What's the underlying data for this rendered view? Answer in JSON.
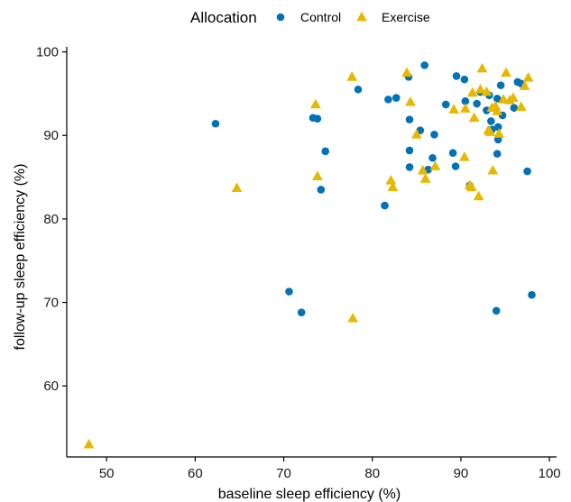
{
  "chart_data": {
    "type": "scatter",
    "xlabel": "baseline sleep efficiency (%)",
    "ylabel": "follow-up sleep efficiency (%)",
    "xlim": [
      45.5,
      100.8
    ],
    "ylim": [
      51.5,
      100.6
    ],
    "xticks": [
      50,
      60,
      70,
      80,
      90,
      100
    ],
    "yticks": [
      60,
      70,
      80,
      90,
      100
    ],
    "grid": false,
    "legend": {
      "title": "Allocation",
      "placement": "top"
    },
    "series": [
      {
        "name": "Control",
        "marker": "circle",
        "color": "#0072B5",
        "points": [
          [
            62.3,
            91.4
          ],
          [
            70.6,
            71.3
          ],
          [
            72.0,
            68.8
          ],
          [
            73.3,
            92.1
          ],
          [
            73.8,
            92.0
          ],
          [
            74.2,
            83.5
          ],
          [
            74.7,
            88.1
          ],
          [
            78.4,
            95.5
          ],
          [
            81.4,
            81.6
          ],
          [
            81.8,
            94.3
          ],
          [
            82.7,
            94.5
          ],
          [
            84.1,
            97.0
          ],
          [
            84.2,
            91.9
          ],
          [
            84.2,
            88.2
          ],
          [
            84.2,
            86.2
          ],
          [
            85.4,
            90.6
          ],
          [
            85.9,
            98.4
          ],
          [
            86.3,
            85.9
          ],
          [
            86.8,
            87.3
          ],
          [
            87.0,
            90.1
          ],
          [
            88.3,
            93.7
          ],
          [
            89.1,
            87.9
          ],
          [
            89.4,
            86.3
          ],
          [
            89.5,
            97.1
          ],
          [
            90.4,
            96.7
          ],
          [
            90.5,
            94.1
          ],
          [
            91.0,
            84.0
          ],
          [
            91.8,
            93.8
          ],
          [
            92.2,
            95.2
          ],
          [
            92.9,
            93.0
          ],
          [
            93.2,
            94.8
          ],
          [
            93.4,
            91.7
          ],
          [
            93.5,
            90.7
          ],
          [
            94.0,
            69.0
          ],
          [
            94.1,
            94.4
          ],
          [
            94.1,
            87.8
          ],
          [
            94.2,
            91.0
          ],
          [
            94.2,
            89.5
          ],
          [
            94.5,
            96.0
          ],
          [
            94.7,
            92.4
          ],
          [
            96.0,
            93.3
          ],
          [
            96.4,
            96.4
          ],
          [
            96.8,
            96.2
          ],
          [
            97.5,
            85.7
          ],
          [
            98.0,
            70.9
          ]
        ]
      },
      {
        "name": "Exercise",
        "marker": "triangle",
        "color": "#E7B800",
        "points": [
          [
            48.0,
            53.0
          ],
          [
            64.7,
            83.7
          ],
          [
            73.6,
            93.7
          ],
          [
            73.8,
            85.1
          ],
          [
            77.7,
            97.0
          ],
          [
            77.8,
            68.1
          ],
          [
            82.1,
            84.6
          ],
          [
            82.3,
            83.8
          ],
          [
            83.9,
            97.5
          ],
          [
            84.3,
            94.0
          ],
          [
            85.0,
            90.1
          ],
          [
            85.7,
            85.8
          ],
          [
            86.0,
            84.8
          ],
          [
            87.1,
            86.3
          ],
          [
            89.2,
            93.1
          ],
          [
            90.4,
            87.4
          ],
          [
            90.5,
            93.2
          ],
          [
            91.0,
            84.0
          ],
          [
            91.2,
            83.8
          ],
          [
            91.3,
            95.1
          ],
          [
            91.5,
            92.1
          ],
          [
            92.0,
            82.7
          ],
          [
            92.2,
            95.5
          ],
          [
            92.4,
            98.0
          ],
          [
            92.9,
            95.2
          ],
          [
            93.1,
            90.6
          ],
          [
            93.3,
            90.4
          ],
          [
            93.5,
            93.3
          ],
          [
            93.6,
            85.8
          ],
          [
            93.9,
            93.5
          ],
          [
            94.1,
            92.9
          ],
          [
            94.3,
            90.2
          ],
          [
            94.8,
            94.3
          ],
          [
            95.1,
            97.5
          ],
          [
            95.5,
            94.2
          ],
          [
            95.9,
            94.5
          ],
          [
            96.8,
            93.4
          ],
          [
            97.2,
            95.9
          ],
          [
            97.6,
            96.9
          ]
        ]
      }
    ]
  }
}
